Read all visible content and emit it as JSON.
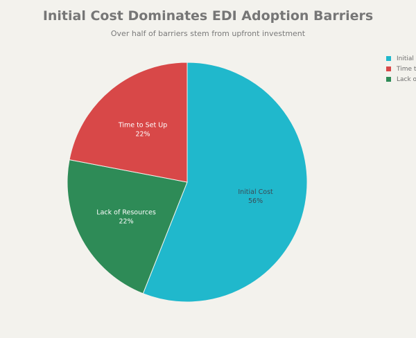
{
  "chart_data": {
    "type": "pie",
    "title": "Initial Cost Dominates EDI Adoption Barriers",
    "subtitle": "Over half of barriers stem from upfront investment",
    "slices": [
      {
        "label": "Initial Cost",
        "value": 56,
        "percent_label": "56%",
        "color": "#20b8cc",
        "text_color": "#3a4a55"
      },
      {
        "label": "Lack of Resources",
        "value": 22,
        "percent_label": "22%",
        "color": "#2e8b57",
        "text_color": "#ffffff"
      },
      {
        "label": "Time to Set Up",
        "value": 22,
        "percent_label": "22%",
        "color": "#d84848",
        "text_color": "#ffffff"
      }
    ],
    "legend": {
      "placement": "top-right",
      "items": [
        {
          "label": "Initial Cost",
          "color": "#20b8cc"
        },
        {
          "label": "Time to Set Up",
          "color": "#d84848"
        },
        {
          "label": "Lack of Resources",
          "color": "#2e8b57"
        }
      ]
    }
  }
}
